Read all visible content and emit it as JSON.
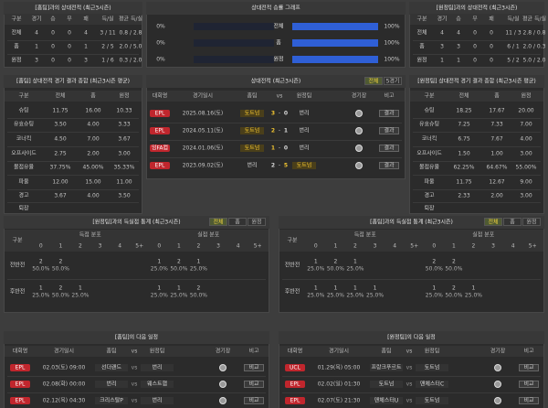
{
  "h2h_home": {
    "title": "[홈팀]과의 상대전적 (최근3시즌)",
    "columns": [
      "구분",
      "경기",
      "승",
      "무",
      "패",
      "득/실",
      "평균 득/실"
    ],
    "rows": [
      [
        "전체",
        4,
        0,
        0,
        4,
        "3 / 11",
        "0.8 / 2.8"
      ],
      [
        "홈",
        1,
        0,
        0,
        1,
        "2 / 5",
        "2.0 / 5.0"
      ],
      [
        "원정",
        3,
        0,
        0,
        3,
        "1 / 6",
        "0.3 / 2.0"
      ]
    ]
  },
  "win_graph": {
    "title": "상대전적 승률 그래프",
    "xlim": [
      0,
      100
    ],
    "bar_color": "#2f5fd6",
    "rows": [
      {
        "label": "전체",
        "home": {
          "value": 0,
          "label": "0%"
        },
        "away": {
          "value": 100,
          "label": "100%"
        }
      },
      {
        "label": "홈",
        "home": {
          "value": 0,
          "label": "0%"
        },
        "away": {
          "value": 100,
          "label": "100%"
        }
      },
      {
        "label": "원정",
        "home": {
          "value": 0,
          "label": "0%"
        },
        "away": {
          "value": 100,
          "label": "100%"
        }
      }
    ]
  },
  "h2h_away": {
    "title": "[원정팀]과의 상대전적 (최근3시즌)",
    "columns": [
      "구분",
      "경기",
      "승",
      "무",
      "패",
      "득/실",
      "평균 득/실"
    ],
    "rows": [
      [
        "전체",
        4,
        4,
        0,
        0,
        "11 / 3",
        "2.8 / 0.8"
      ],
      [
        "홈",
        3,
        3,
        0,
        0,
        "6 / 1",
        "2.0 / 0.3"
      ],
      [
        "원정",
        1,
        1,
        0,
        0,
        "5 / 2",
        "5.0 / 2.0"
      ]
    ]
  },
  "summary_home": {
    "title": "[홈팀] 상대전적 경기 결과 종합 (최근3시즌 평균)",
    "columns": [
      "구분",
      "전체",
      "홈",
      "원정"
    ],
    "rows": [
      [
        "슈팅",
        "11.75",
        "16.00",
        "10.33"
      ],
      [
        "유효슈팅",
        "3.50",
        "4.00",
        "3.33"
      ],
      [
        "코너킥",
        "4.50",
        "7.00",
        "3.67"
      ],
      [
        "오프사이드",
        "2.75",
        "2.00",
        "3.00"
      ],
      [
        "볼점유율",
        "37.75%",
        "45.00%",
        "35.33%"
      ],
      [
        "파울",
        "12.00",
        "15.00",
        "11.00"
      ],
      [
        "경고",
        "3.67",
        "4.00",
        "3.50"
      ],
      [
        "퇴장"
      ]
    ]
  },
  "h2h_matches": {
    "title": "상대전적 (최근3시즌)",
    "tabs": [
      "전체",
      "5경기"
    ],
    "columns": [
      "대회명",
      "경기일시",
      "홈팀",
      "vs",
      "원정팀",
      "경기장",
      "비고"
    ],
    "dash": "-",
    "badge_color": "#c0262d",
    "highlight_color": "#f0c330",
    "rows": [
      {
        "league": "EPL",
        "date": "2025.08.16(토)",
        "home": "토트넘",
        "score_home": 3,
        "score_away": 0,
        "away": "번리",
        "highlight": "home",
        "note": "결과"
      },
      {
        "league": "EPL",
        "date": "2024.05.11(토)",
        "home": "토트넘",
        "score_home": 2,
        "score_away": 1,
        "away": "번리",
        "highlight": "home",
        "note": "결과"
      },
      {
        "league": "잉FA컵",
        "date": "2024.01.06(토)",
        "home": "토트넘",
        "score_home": 1,
        "score_away": 0,
        "away": "번리",
        "highlight": "home",
        "note": "결과"
      },
      {
        "league": "EPL",
        "date": "2023.09.02(토)",
        "home": "번리",
        "score_home": 2,
        "score_away": 5,
        "away": "토트넘",
        "highlight": "away",
        "note": "결과"
      }
    ]
  },
  "summary_away": {
    "title": "[원정팀] 상대전적 경기 결과 종합 (최근3시즌 평균)",
    "columns": [
      "구분",
      "전체",
      "홈",
      "원정"
    ],
    "rows": [
      [
        "슈팅",
        "18.25",
        "17.67",
        "20.00"
      ],
      [
        "유효슈팅",
        "7.25",
        "7.33",
        "7.00"
      ],
      [
        "코너킥",
        "6.75",
        "7.67",
        "4.00"
      ],
      [
        "오프사이드",
        "1.50",
        "1.00",
        "3.00"
      ],
      [
        "볼점유율",
        "62.25%",
        "64.67%",
        "55.00%"
      ],
      [
        "파울",
        "11.75",
        "12.67",
        "9.00"
      ],
      [
        "경고",
        "2.33",
        "2.00",
        "3.00"
      ],
      [
        "퇴장"
      ]
    ]
  },
  "goals_left": {
    "title": "[원정팀]과의 득실점 통계 (최근3시즌)",
    "tabs": [
      "전체",
      "홈",
      "원정"
    ],
    "group": "구분",
    "scored": "득점 분포",
    "conceded": "실점 분포",
    "buckets": [
      "0",
      "1",
      "2",
      "3",
      "4",
      "5+"
    ],
    "rows": [
      {
        "label": "전반전",
        "scored": [
          {
            "count": 2,
            "pct": "50.0%"
          },
          {
            "count": 2,
            "pct": "50.0%"
          },
          null,
          null,
          null,
          null
        ],
        "conceded": [
          {
            "count": 1,
            "pct": "25.0%"
          },
          {
            "count": 2,
            "pct": "50.0%"
          },
          {
            "count": 1,
            "pct": "25.0%"
          },
          null,
          null,
          null
        ]
      },
      {
        "label": "후반전",
        "scored": [
          {
            "count": 1,
            "pct": "25.0%"
          },
          {
            "count": 2,
            "pct": "50.0%"
          },
          {
            "count": 1,
            "pct": "25.0%"
          },
          null,
          null,
          null
        ],
        "conceded": [
          {
            "count": 1,
            "pct": "25.0%"
          },
          {
            "count": 1,
            "pct": "25.0%"
          },
          {
            "count": 2,
            "pct": "50.0%"
          },
          null,
          null,
          null
        ]
      }
    ]
  },
  "goals_right": {
    "title": "[홈팀]과의 득실점 통계 (최근3시즌)",
    "tabs": [
      "전체",
      "홈",
      "원정"
    ],
    "group": "구분",
    "scored": "득점 분포",
    "conceded": "실점 분포",
    "buckets": [
      "0",
      "1",
      "2",
      "3",
      "4",
      "5+"
    ],
    "rows": [
      {
        "label": "전반전",
        "scored": [
          {
            "count": 1,
            "pct": "25.0%"
          },
          {
            "count": 2,
            "pct": "50.0%"
          },
          {
            "count": 1,
            "pct": "25.0%"
          },
          null,
          null,
          null
        ],
        "conceded": [
          {
            "count": 2,
            "pct": "50.0%"
          },
          {
            "count": 2,
            "pct": "50.0%"
          },
          null,
          null,
          null,
          null
        ]
      },
      {
        "label": "후반전",
        "scored": [
          {
            "count": 1,
            "pct": "25.0%"
          },
          {
            "count": 1,
            "pct": "25.0%"
          },
          {
            "count": 1,
            "pct": "25.0%"
          },
          {
            "count": 1,
            "pct": "25.0%"
          },
          null,
          null
        ],
        "conceded": [
          {
            "count": 1,
            "pct": "25.0%"
          },
          {
            "count": 2,
            "pct": "50.0%"
          },
          {
            "count": 1,
            "pct": "25.0%"
          },
          null,
          null,
          null
        ]
      }
    ]
  },
  "next_home": {
    "title": "[홈팀]의 다음 일정",
    "columns": [
      "대회명",
      "경기일시",
      "홈팀",
      "vs",
      "원정팀",
      "경기장",
      "비고"
    ],
    "rows": [
      {
        "league": "EPL",
        "date": "02.03(토) 09:00",
        "home": "선더랜드",
        "vs": "vs",
        "away": "번리",
        "note": "비교"
      },
      {
        "league": "EPL",
        "date": "02.08(화) 00:00",
        "home": "번리",
        "vs": "vs",
        "away": "웨스트햄",
        "note": "비교"
      },
      {
        "league": "EPL",
        "date": "02.12(목) 04:30",
        "home": "크리스탈P",
        "vs": "vs",
        "away": "번리",
        "note": "비교"
      }
    ]
  },
  "next_away": {
    "title": "[원정팀]의 다음 일정",
    "columns": [
      "대회명",
      "경기일시",
      "홈팀",
      "vs",
      "원정팀",
      "경기장",
      "비고"
    ],
    "rows": [
      {
        "league": "UCL",
        "date": "01.29(목) 05:00",
        "home": "프랑크푸르트",
        "vs": "vs",
        "away": "토트넘",
        "note": "비교"
      },
      {
        "league": "EPL",
        "date": "02.02(일) 01:30",
        "home": "토트넘",
        "vs": "vs",
        "away": "맨체스터C",
        "note": "비교"
      },
      {
        "league": "EPL",
        "date": "02.07(토) 21:30",
        "home": "맨체스터U",
        "vs": "vs",
        "away": "토트넘",
        "note": "비교"
      }
    ]
  }
}
